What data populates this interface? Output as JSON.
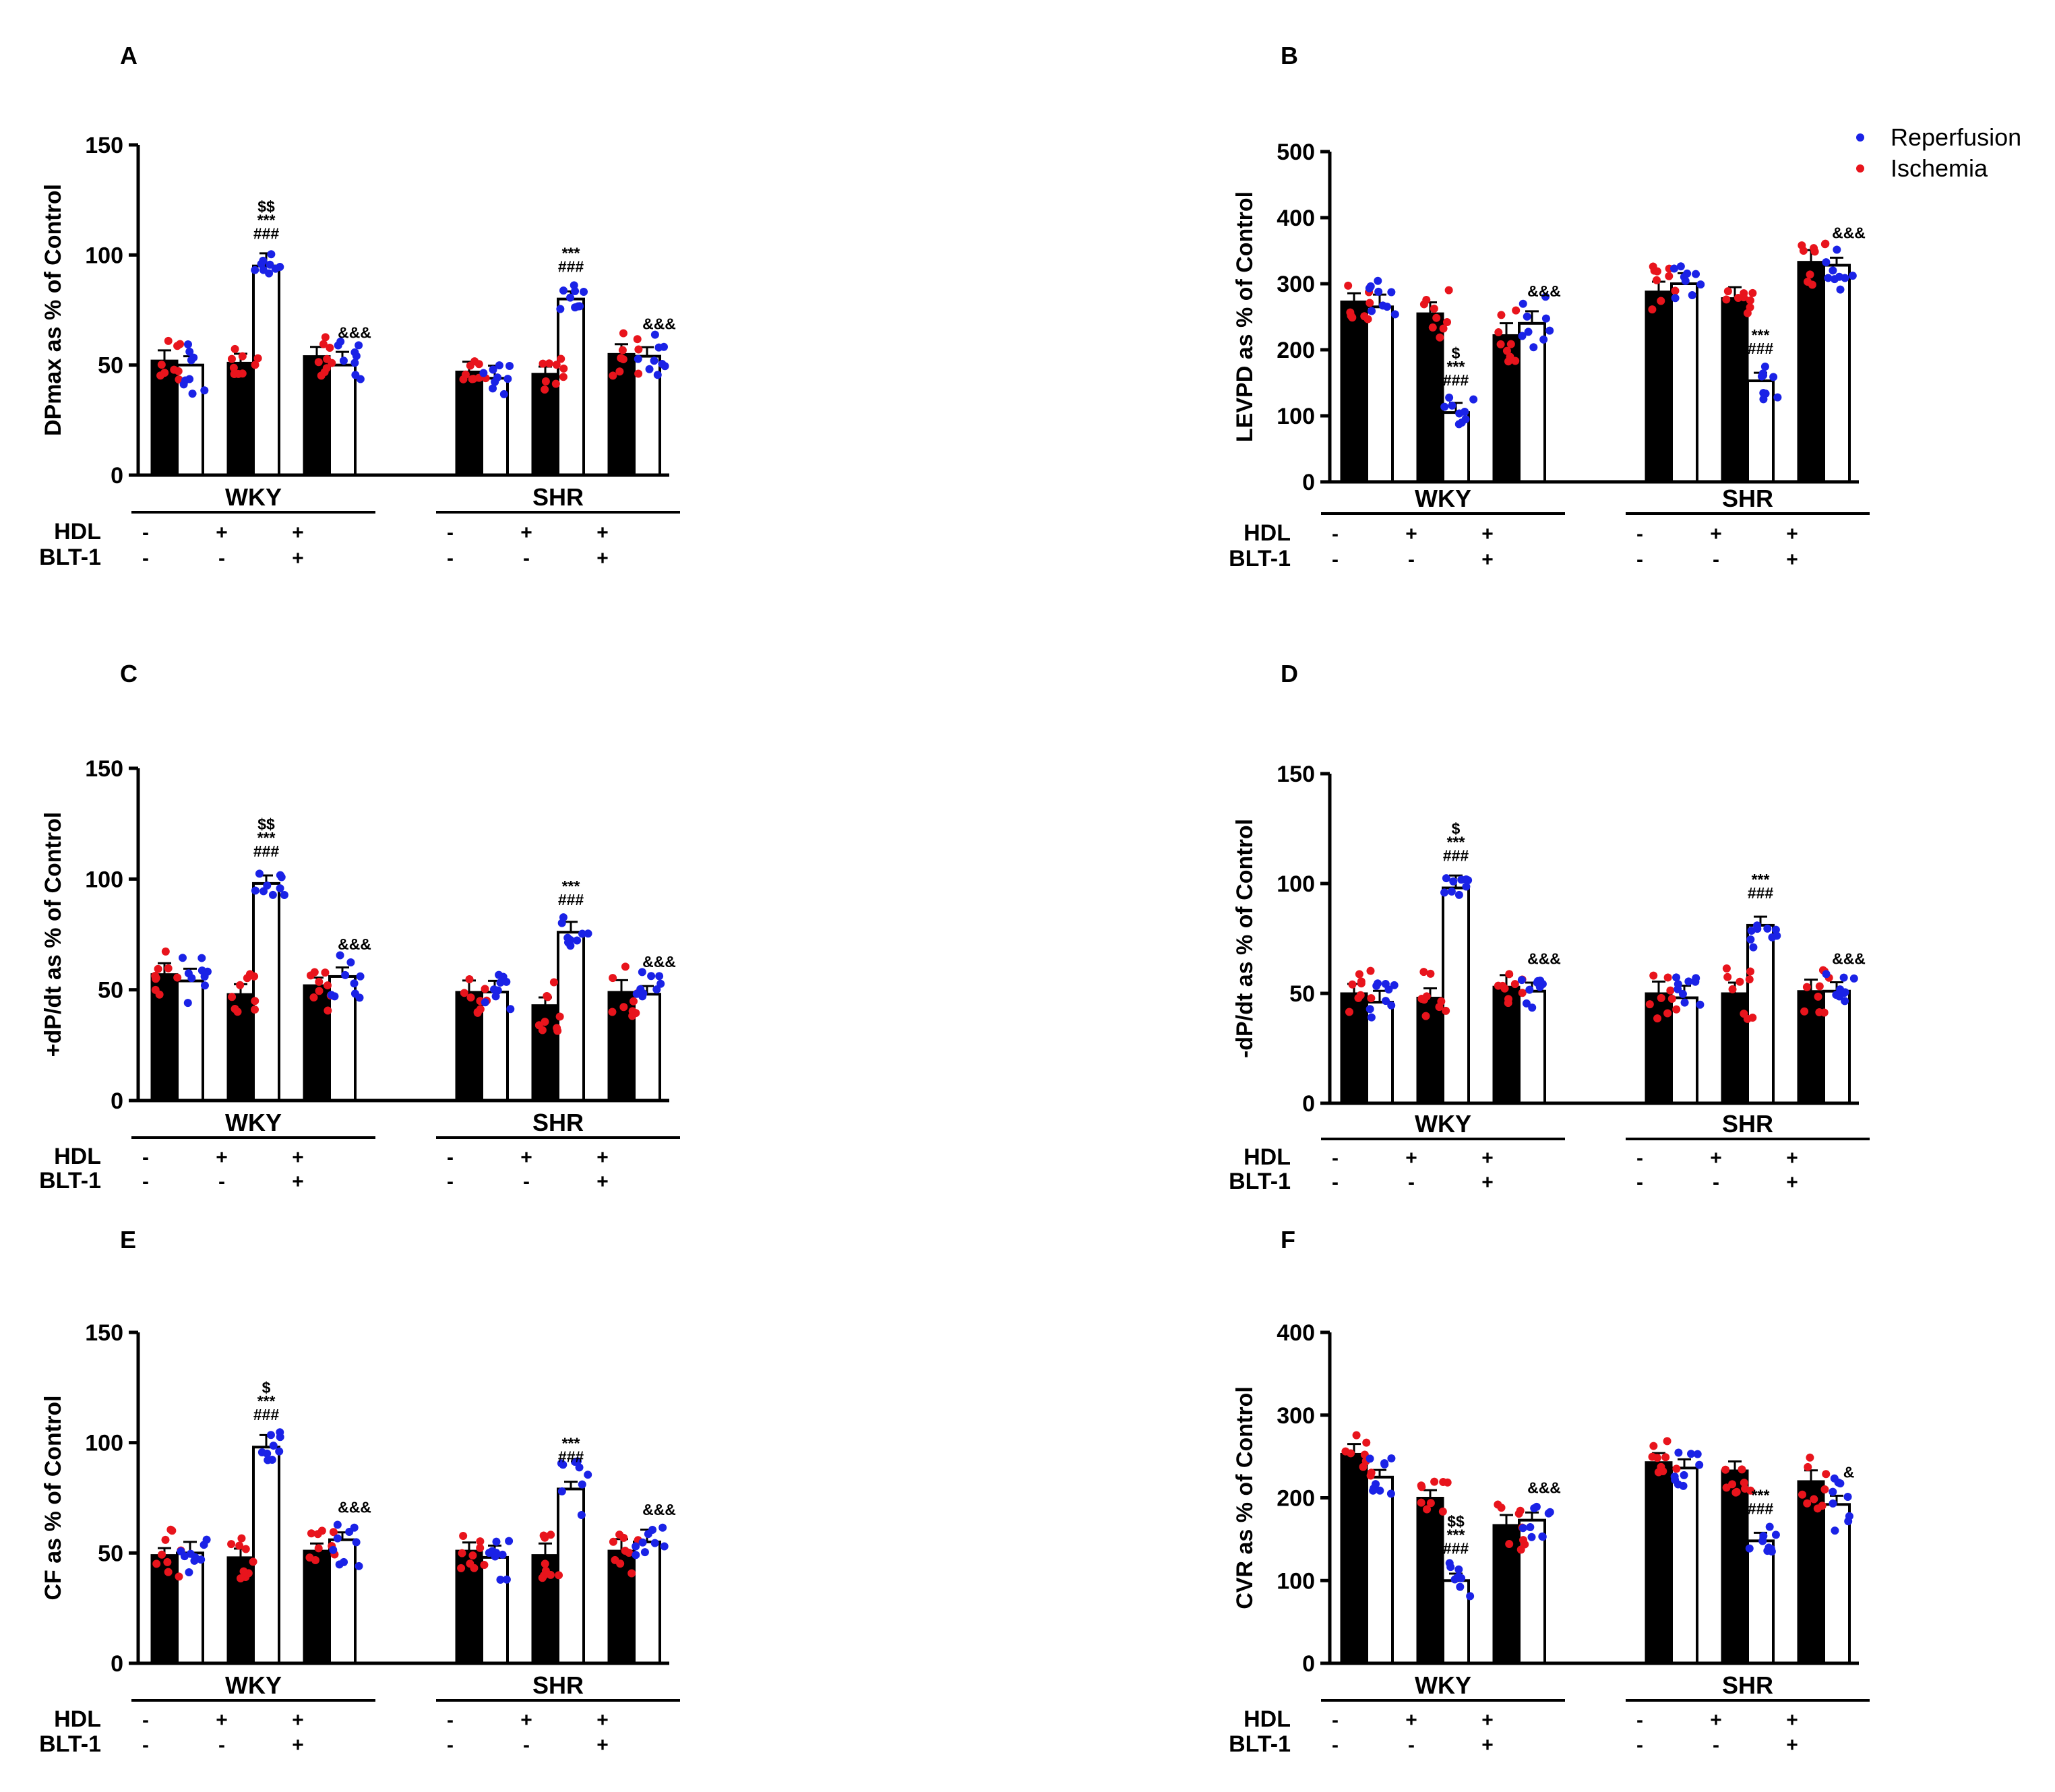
{
  "figure": {
    "colors": {
      "ischemia": "#e8141c",
      "reperfusion": "#1a22e6",
      "ischemia_bar": "#000000",
      "reperfusion_bar": "#ffffff",
      "axis": "#000000"
    },
    "treatment_labels": {
      "hdl": "HDL",
      "blt1": "BLT-1"
    },
    "treatment_signs": {
      "hdl": [
        "-",
        "+",
        "+",
        "-",
        "+",
        "+"
      ],
      "blt1": [
        "-",
        "-",
        "+",
        "-",
        "-",
        "+"
      ]
    },
    "legend": [
      {
        "label": "Reperfusion",
        "color_key": "reperfusion"
      },
      {
        "label": "Ischemia",
        "color_key": "ischemia"
      }
    ]
  },
  "chart_data": [
    {
      "panel": "A",
      "type": "bar",
      "title": "",
      "ylabel": "DPmax as % of Control",
      "xlabel": "",
      "ylim": [
        0,
        150
      ],
      "yticks": [
        0,
        50,
        100,
        150
      ],
      "groups": [
        "WKY",
        "SHR"
      ],
      "categories": [
        "WKY -/-",
        "WKY HDL",
        "WKY HDL+BLT-1",
        "SHR -/-",
        "SHR HDL",
        "SHR HDL+BLT-1"
      ],
      "series": [
        {
          "name": "Ischemia",
          "values": [
            52,
            51,
            54,
            47,
            46,
            55
          ]
        },
        {
          "name": "Reperfusion",
          "values": [
            50,
            95,
            50,
            44,
            80,
            54
          ]
        }
      ],
      "annotations": [
        {
          "index": 1,
          "series": 1,
          "lines": [
            "$$",
            "***",
            "###"
          ]
        },
        {
          "index": 2,
          "series": 1,
          "lines": [
            "&&&"
          ]
        },
        {
          "index": 4,
          "series": 1,
          "lines": [
            "***",
            "###"
          ]
        },
        {
          "index": 5,
          "series": 1,
          "lines": [
            "&&&"
          ]
        }
      ]
    },
    {
      "panel": "B",
      "type": "bar",
      "title": "",
      "ylabel": "LEVPD as % of Control",
      "xlabel": "",
      "ylim": [
        0,
        500
      ],
      "yticks": [
        0,
        100,
        200,
        300,
        400,
        500
      ],
      "groups": [
        "WKY",
        "SHR"
      ],
      "categories": [
        "WKY -/-",
        "WKY HDL",
        "WKY HDL+BLT-1",
        "SHR -/-",
        "SHR HDL",
        "SHR HDL+BLT-1"
      ],
      "series": [
        {
          "name": "Ischemia",
          "values": [
            273,
            255,
            222,
            288,
            278,
            333
          ]
        },
        {
          "name": "Reperfusion",
          "values": [
            265,
            105,
            240,
            300,
            153,
            328
          ]
        }
      ],
      "annotations": [
        {
          "index": 1,
          "series": 1,
          "lines": [
            "$",
            "***",
            "###"
          ]
        },
        {
          "index": 2,
          "series": 1,
          "lines": [
            "&&&"
          ]
        },
        {
          "index": 4,
          "series": 1,
          "lines": [
            "***",
            "###"
          ]
        },
        {
          "index": 5,
          "series": 1,
          "lines": [
            "&&&"
          ]
        }
      ]
    },
    {
      "panel": "C",
      "type": "bar",
      "title": "",
      "ylabel": "+dP/dt as % of Control",
      "xlabel": "",
      "ylim": [
        0,
        150
      ],
      "yticks": [
        0,
        50,
        100,
        150
      ],
      "groups": [
        "WKY",
        "SHR"
      ],
      "categories": [
        "WKY -/-",
        "WKY HDL",
        "WKY HDL+BLT-1",
        "SHR -/-",
        "SHR HDL",
        "SHR HDL+BLT-1"
      ],
      "series": [
        {
          "name": "Ischemia",
          "values": [
            57,
            48,
            52,
            49,
            43,
            49
          ]
        },
        {
          "name": "Reperfusion",
          "values": [
            54,
            98,
            56,
            49,
            76,
            48
          ]
        }
      ],
      "annotations": [
        {
          "index": 1,
          "series": 1,
          "lines": [
            "$$",
            "***",
            "###"
          ]
        },
        {
          "index": 2,
          "series": 1,
          "lines": [
            "&&&"
          ]
        },
        {
          "index": 4,
          "series": 1,
          "lines": [
            "***",
            "###"
          ]
        },
        {
          "index": 5,
          "series": 1,
          "lines": [
            "&&&"
          ]
        }
      ]
    },
    {
      "panel": "D",
      "type": "bar",
      "title": "",
      "ylabel": "-dP/dt as % of Control",
      "xlabel": "",
      "ylim": [
        0,
        150
      ],
      "yticks": [
        0,
        50,
        100,
        150
      ],
      "groups": [
        "WKY",
        "SHR"
      ],
      "categories": [
        "WKY -/-",
        "WKY HDL",
        "WKY HDL+BLT-1",
        "SHR -/-",
        "SHR HDL",
        "SHR HDL+BLT-1"
      ],
      "series": [
        {
          "name": "Ischemia",
          "values": [
            50,
            48,
            53,
            50,
            50,
            51
          ]
        },
        {
          "name": "Reperfusion",
          "values": [
            46,
            98,
            51,
            48,
            81,
            51
          ]
        }
      ],
      "annotations": [
        {
          "index": 1,
          "series": 1,
          "lines": [
            "$",
            "***",
            "###"
          ]
        },
        {
          "index": 2,
          "series": 1,
          "lines": [
            "&&&"
          ]
        },
        {
          "index": 4,
          "series": 1,
          "lines": [
            "***",
            "###"
          ]
        },
        {
          "index": 5,
          "series": 1,
          "lines": [
            "&&&"
          ]
        }
      ]
    },
    {
      "panel": "E",
      "type": "bar",
      "title": "",
      "ylabel": "CF as % of Control",
      "xlabel": "",
      "ylim": [
        0,
        150
      ],
      "yticks": [
        0,
        50,
        100,
        150
      ],
      "groups": [
        "WKY",
        "SHR"
      ],
      "categories": [
        "WKY -/-",
        "WKY HDL",
        "WKY HDL+BLT-1",
        "SHR -/-",
        "SHR HDL",
        "SHR HDL+BLT-1"
      ],
      "series": [
        {
          "name": "Ischemia",
          "values": [
            49,
            48,
            51,
            51,
            49,
            51
          ]
        },
        {
          "name": "Reperfusion",
          "values": [
            50,
            98,
            56,
            48,
            79,
            55
          ]
        }
      ],
      "annotations": [
        {
          "index": 1,
          "series": 1,
          "lines": [
            "$",
            "***",
            "###"
          ]
        },
        {
          "index": 2,
          "series": 1,
          "lines": [
            "&&&"
          ]
        },
        {
          "index": 4,
          "series": 1,
          "lines": [
            "***",
            "###"
          ]
        },
        {
          "index": 5,
          "series": 1,
          "lines": [
            "&&&"
          ]
        }
      ]
    },
    {
      "panel": "F",
      "type": "bar",
      "title": "",
      "ylabel": "CVR as % of Control",
      "xlabel": "",
      "ylim": [
        0,
        400
      ],
      "yticks": [
        0,
        100,
        200,
        300,
        400
      ],
      "groups": [
        "WKY",
        "SHR"
      ],
      "categories": [
        "WKY -/-",
        "WKY HDL",
        "WKY HDL+BLT-1",
        "SHR -/-",
        "SHR HDL",
        "SHR HDL+BLT-1"
      ],
      "series": [
        {
          "name": "Ischemia",
          "values": [
            253,
            200,
            167,
            243,
            233,
            220
          ]
        },
        {
          "name": "Reperfusion",
          "values": [
            225,
            100,
            173,
            236,
            148,
            192
          ]
        }
      ],
      "annotations": [
        {
          "index": 1,
          "series": 1,
          "lines": [
            "$$",
            "***",
            "###"
          ]
        },
        {
          "index": 2,
          "series": 1,
          "lines": [
            "&&&"
          ]
        },
        {
          "index": 4,
          "series": 1,
          "lines": [
            "***",
            "###"
          ]
        },
        {
          "index": 5,
          "series": 1,
          "lines": [
            "&"
          ]
        }
      ]
    }
  ]
}
